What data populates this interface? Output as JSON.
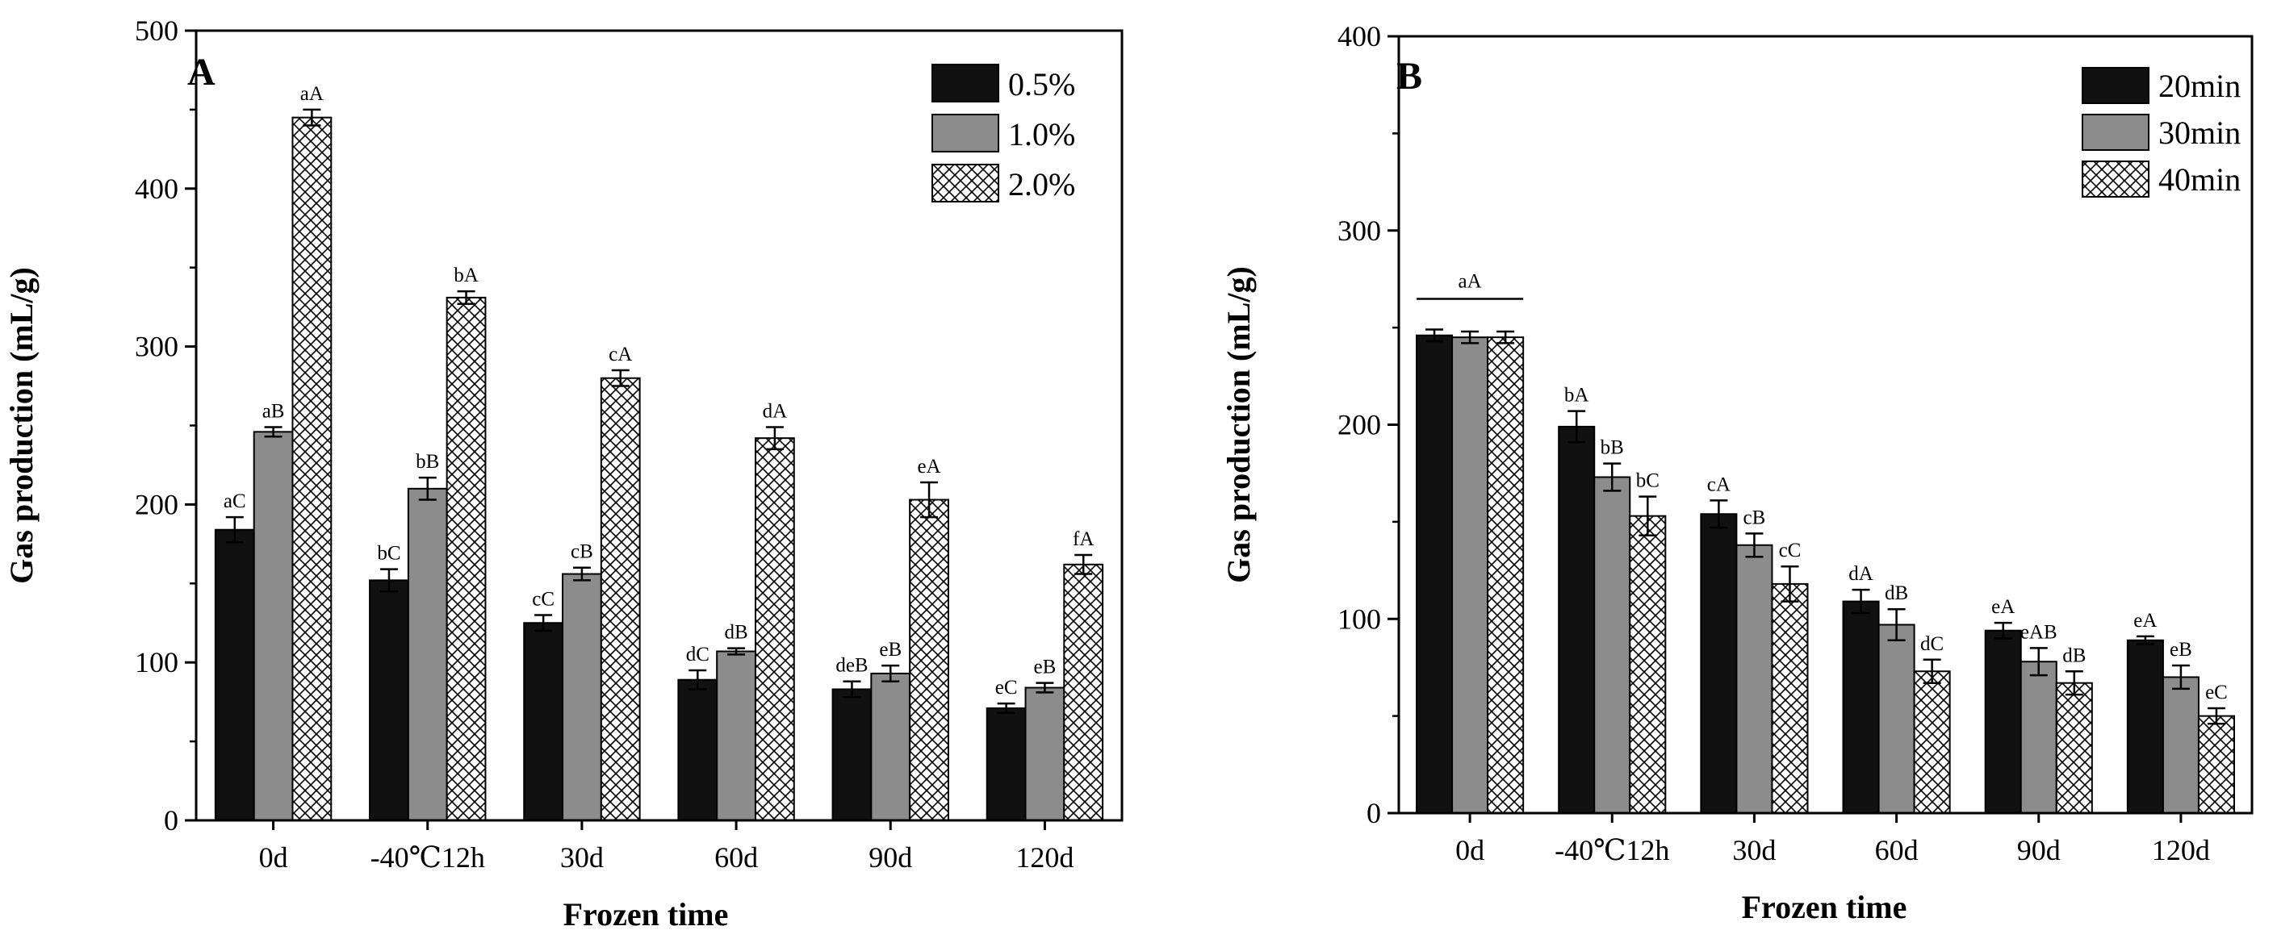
{
  "colors": {
    "bar_dark": "#111111",
    "bar_gray": "#8c8c8c",
    "bar_hatch_bg": "#ffffff",
    "stroke": "#000000"
  },
  "chart_data": [
    {
      "panel": "A",
      "type": "bar",
      "xlabel": "Frozen time",
      "ylabel": "Gas production (mL/g)",
      "ylim": [
        0,
        500
      ],
      "yticks": [
        "0",
        "100",
        "200",
        "300",
        "400",
        "500"
      ],
      "categories": [
        "0d",
        "-40℃12h",
        "30d",
        "60d",
        "90d",
        "120d"
      ],
      "legend_position": "top-right",
      "series": [
        {
          "name": "0.5%",
          "fill": "solid-dark",
          "values": [
            184,
            152,
            125,
            89,
            83,
            71
          ],
          "errors": [
            8,
            7,
            5,
            6,
            5,
            3
          ],
          "labels": [
            "aC",
            "bC",
            "cC",
            "dC",
            "deB",
            "eC"
          ]
        },
        {
          "name": "1.0%",
          "fill": "solid-gray",
          "values": [
            246,
            210,
            156,
            107,
            93,
            84
          ],
          "errors": [
            3,
            7,
            4,
            2,
            5,
            3
          ],
          "labels": [
            "aB",
            "bB",
            "cB",
            "dB",
            "eB",
            "eB"
          ]
        },
        {
          "name": "2.0%",
          "fill": "crosshatch",
          "values": [
            445,
            331,
            280,
            242,
            203,
            162
          ],
          "errors": [
            5,
            4,
            5,
            7,
            11,
            6
          ],
          "labels": [
            "aA",
            "bA",
            "cA",
            "dA",
            "eA",
            "fA"
          ]
        }
      ]
    },
    {
      "panel": "B",
      "type": "bar",
      "xlabel": "Frozen time",
      "ylabel": "Gas production (mL/g)",
      "ylim": [
        0,
        400
      ],
      "yticks": [
        "0",
        "100",
        "200",
        "300",
        "400"
      ],
      "categories": [
        "0d",
        "-40℃12h",
        "30d",
        "60d",
        "90d",
        "120d"
      ],
      "legend_position": "top-right",
      "group_labels": [
        {
          "category_index": 0,
          "text": "aA"
        }
      ],
      "series": [
        {
          "name": "20min",
          "fill": "solid-dark",
          "values": [
            246,
            199,
            154,
            109,
            94,
            89
          ],
          "errors": [
            3,
            8,
            7,
            6,
            4,
            2
          ],
          "labels": [
            "",
            "bA",
            "cA",
            "dA",
            "eA",
            "eA"
          ]
        },
        {
          "name": "30min",
          "fill": "solid-gray",
          "values": [
            245,
            173,
            138,
            97,
            78,
            70
          ],
          "errors": [
            3,
            7,
            6,
            8,
            7,
            6
          ],
          "labels": [
            "",
            "bB",
            "cB",
            "dB",
            "eAB",
            "eB"
          ]
        },
        {
          "name": "40min",
          "fill": "crosshatch",
          "values": [
            245,
            153,
            118,
            73,
            67,
            50
          ],
          "errors": [
            3,
            10,
            9,
            6,
            6,
            4
          ],
          "labels": [
            "",
            "bC",
            "cC",
            "dC",
            "dB",
            "eC"
          ]
        }
      ]
    }
  ]
}
